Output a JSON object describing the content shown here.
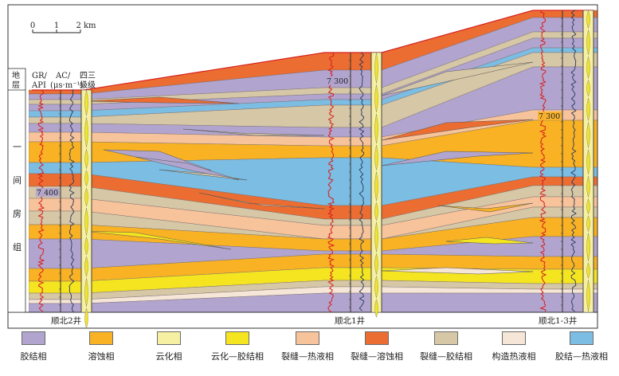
{
  "scale_bar": {
    "ticks": [
      "0",
      "1",
      "2 km"
    ]
  },
  "columns": {
    "stratum": "地层",
    "gr": "GR/\nAPI",
    "ac": "AC/\n(μs·m⁻¹)",
    "grade": "四三\n级级"
  },
  "formation_chars": [
    "一",
    "间",
    "房",
    "组"
  ],
  "wells": [
    {
      "name": "顺北2井",
      "depth_label": "7 400"
    },
    {
      "name": "顺北1井",
      "depth_label": "7 300"
    },
    {
      "name": "顺北1-3井",
      "depth_label": "7 300"
    }
  ],
  "legend": [
    {
      "label": "胶结相",
      "color": "#b1a5cf"
    },
    {
      "label": "溶蚀相",
      "color": "#f8b223"
    },
    {
      "label": "云化相",
      "color": "#f6f0a2"
    },
    {
      "label": "云化—胶结相",
      "color": "#f4e520"
    },
    {
      "label": "裂缝—热液相",
      "color": "#f7c39b"
    },
    {
      "label": "裂缝—溶蚀相",
      "color": "#ec6d31"
    },
    {
      "label": "裂缝—胶结相",
      "color": "#d6c7a6"
    },
    {
      "label": "构造热液相",
      "color": "#f6e6d8"
    },
    {
      "label": "胶结—热液相",
      "color": "#7cbde3"
    }
  ]
}
